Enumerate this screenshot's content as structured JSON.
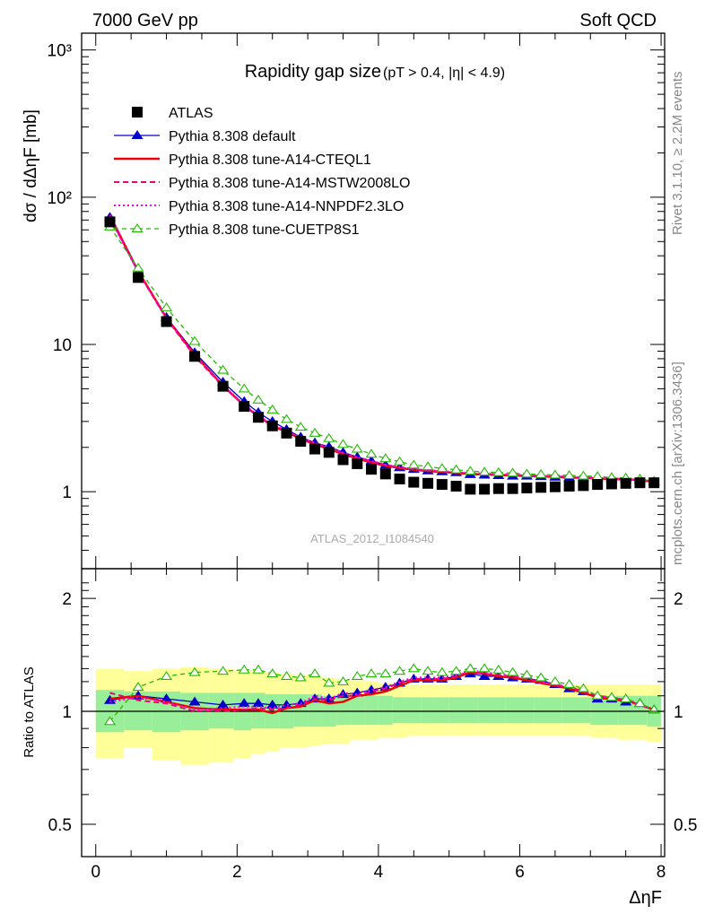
{
  "header": {
    "energy_label": "7000 GeV pp",
    "process_label": "Soft QCD",
    "side_top": "Rivet 3.1.10, ≥ 2.2M events",
    "side_bottom": "mcplots.cern.ch [arXiv:1306.3436]",
    "analysis_tag": "ATLAS_2012_I1084540"
  },
  "colors": {
    "default": "#0000cc",
    "cteql1": "#ee0000",
    "mstw": "#ee0077",
    "nnpdf": "#ff00dd",
    "cuetp": "#22bb00",
    "band_outer": "#ffff99",
    "band_inner": "#99ee99"
  },
  "chart_data": [
    {
      "type": "scatter",
      "title": "Rapidity gap size",
      "subtitle": "(pT > 0.4, |η| < 4.9)",
      "ylabel": "dσ / dΔηF [mb]",
      "xlabel": "ΔηF",
      "ylog": true,
      "ylim": [
        0.3,
        1300
      ],
      "xlim": [
        -0.2,
        8
      ],
      "y_tick_labels": [
        "1",
        "10",
        "10²",
        "10³"
      ],
      "x_tick_labels": [
        "0",
        "2",
        "4",
        "6",
        "8"
      ],
      "legend_position": "top-left",
      "x": [
        0.2,
        0.6,
        1.0,
        1.4,
        1.8,
        2.1,
        2.3,
        2.5,
        2.7,
        2.9,
        3.1,
        3.3,
        3.5,
        3.7,
        3.9,
        4.1,
        4.3,
        4.5,
        4.7,
        4.9,
        5.1,
        5.3,
        5.5,
        5.7,
        5.9,
        6.1,
        6.3,
        6.5,
        6.7,
        6.9,
        7.1,
        7.3,
        7.5,
        7.7,
        7.9
      ],
      "series": [
        {
          "name": "ATLAS",
          "key": "atlas",
          "values": [
            68,
            28.5,
            14.3,
            8.3,
            5.2,
            3.8,
            3.2,
            2.8,
            2.5,
            2.2,
            1.95,
            1.85,
            1.65,
            1.55,
            1.42,
            1.32,
            1.22,
            1.16,
            1.14,
            1.12,
            1.09,
            1.04,
            1.04,
            1.05,
            1.05,
            1.06,
            1.07,
            1.08,
            1.09,
            1.1,
            1.12,
            1.13,
            1.14,
            1.15,
            1.15
          ]
        },
        {
          "name": "Pythia 8.308 default",
          "key": "default",
          "values": [
            73,
            31,
            15.3,
            8.8,
            5.55,
            4.1,
            3.45,
            3.0,
            2.65,
            2.35,
            2.15,
            2.02,
            1.85,
            1.72,
            1.62,
            1.52,
            1.46,
            1.42,
            1.39,
            1.37,
            1.35,
            1.31,
            1.3,
            1.29,
            1.28,
            1.28,
            1.27,
            1.26,
            1.25,
            1.25,
            1.24,
            1.23,
            1.22,
            1.2,
            1.17
          ]
        },
        {
          "name": "Pythia 8.308 tune-A14-CTEQL1",
          "key": "cteql1",
          "values": [
            75,
            31.5,
            15.2,
            8.5,
            5.25,
            3.85,
            3.25,
            2.8,
            2.55,
            2.28,
            2.1,
            1.95,
            1.8,
            1.68,
            1.58,
            1.5,
            1.45,
            1.41,
            1.38,
            1.36,
            1.34,
            1.32,
            1.31,
            1.3,
            1.29,
            1.28,
            1.27,
            1.26,
            1.25,
            1.24,
            1.23,
            1.22,
            1.21,
            1.2,
            1.17
          ]
        },
        {
          "name": "Pythia 8.308 tune-A14-MSTW2008LO",
          "key": "mstw",
          "values": [
            76,
            31,
            15.0,
            8.3,
            5.2,
            3.85,
            3.25,
            2.82,
            2.55,
            2.3,
            2.12,
            1.98,
            1.82,
            1.7,
            1.6,
            1.52,
            1.46,
            1.42,
            1.39,
            1.37,
            1.35,
            1.33,
            1.32,
            1.31,
            1.3,
            1.29,
            1.28,
            1.27,
            1.26,
            1.25,
            1.24,
            1.23,
            1.22,
            1.2,
            1.17
          ]
        },
        {
          "name": "Pythia 8.308 tune-A14-NNPDF2.3LO",
          "key": "nnpdf",
          "values": [
            72,
            31,
            15.1,
            8.4,
            5.3,
            3.9,
            3.3,
            2.85,
            2.6,
            2.32,
            2.15,
            2.0,
            1.84,
            1.72,
            1.62,
            1.53,
            1.47,
            1.43,
            1.4,
            1.38,
            1.36,
            1.34,
            1.33,
            1.32,
            1.31,
            1.3,
            1.28,
            1.27,
            1.26,
            1.25,
            1.24,
            1.23,
            1.22,
            1.2,
            1.17
          ]
        },
        {
          "name": "Pythia 8.308 tune-CUETP8S1",
          "key": "cuetp",
          "values": [
            63,
            33,
            17.8,
            10.5,
            6.7,
            5.0,
            4.2,
            3.6,
            3.1,
            2.75,
            2.5,
            2.3,
            2.1,
            1.95,
            1.8,
            1.68,
            1.6,
            1.52,
            1.48,
            1.44,
            1.41,
            1.38,
            1.36,
            1.35,
            1.34,
            1.32,
            1.31,
            1.3,
            1.29,
            1.28,
            1.27,
            1.25,
            1.24,
            1.22,
            1.18
          ]
        }
      ]
    },
    {
      "type": "line",
      "ylabel": "Ratio to ATLAS",
      "ylim": [
        0.41,
        2.4
      ],
      "y_tick_labels": [
        "0.5",
        "1",
        "2"
      ],
      "x": [
        0.2,
        0.6,
        1.0,
        1.4,
        1.8,
        2.1,
        2.3,
        2.5,
        2.7,
        2.9,
        3.1,
        3.3,
        3.5,
        3.7,
        3.9,
        4.1,
        4.3,
        4.5,
        4.7,
        4.9,
        5.1,
        5.3,
        5.5,
        5.7,
        5.9,
        6.1,
        6.3,
        6.5,
        6.7,
        6.9,
        7.1,
        7.3,
        7.5,
        7.7,
        7.9
      ],
      "bands": {
        "inner_lo": [
          0.88,
          0.89,
          0.88,
          0.89,
          0.9,
          0.89,
          0.9,
          0.9,
          0.9,
          0.91,
          0.91,
          0.91,
          0.92,
          0.92,
          0.92,
          0.92,
          0.93,
          0.93,
          0.93,
          0.93,
          0.93,
          0.93,
          0.93,
          0.93,
          0.93,
          0.93,
          0.93,
          0.93,
          0.93,
          0.93,
          0.92,
          0.92,
          0.92,
          0.92,
          0.91
        ],
        "inner_hi": [
          1.14,
          1.13,
          1.13,
          1.12,
          1.12,
          1.12,
          1.12,
          1.11,
          1.11,
          1.11,
          1.11,
          1.1,
          1.1,
          1.1,
          1.1,
          1.1,
          1.09,
          1.09,
          1.09,
          1.09,
          1.09,
          1.09,
          1.09,
          1.09,
          1.09,
          1.09,
          1.09,
          1.09,
          1.09,
          1.09,
          1.09,
          1.1,
          1.1,
          1.1,
          1.1
        ],
        "outer_lo": [
          0.75,
          0.8,
          0.74,
          0.72,
          0.73,
          0.75,
          0.77,
          0.78,
          0.8,
          0.8,
          0.81,
          0.82,
          0.82,
          0.84,
          0.84,
          0.85,
          0.85,
          0.86,
          0.86,
          0.86,
          0.86,
          0.86,
          0.86,
          0.86,
          0.86,
          0.86,
          0.86,
          0.86,
          0.86,
          0.86,
          0.85,
          0.85,
          0.84,
          0.84,
          0.83
        ],
        "outer_hi": [
          1.3,
          1.28,
          1.3,
          1.31,
          1.3,
          1.29,
          1.28,
          1.27,
          1.26,
          1.25,
          1.24,
          1.23,
          1.22,
          1.21,
          1.2,
          1.19,
          1.18,
          1.18,
          1.18,
          1.18,
          1.18,
          1.18,
          1.18,
          1.18,
          1.18,
          1.18,
          1.18,
          1.18,
          1.18,
          1.18,
          1.18,
          1.18,
          1.18,
          1.18,
          1.18
        ]
      },
      "series": [
        {
          "name": "Pythia 8.308 default",
          "key": "default",
          "values": [
            1.07,
            1.1,
            1.08,
            1.06,
            1.04,
            1.05,
            1.05,
            1.04,
            1.04,
            1.05,
            1.08,
            1.08,
            1.11,
            1.12,
            1.14,
            1.16,
            1.19,
            1.22,
            1.22,
            1.22,
            1.24,
            1.26,
            1.24,
            1.24,
            1.23,
            1.22,
            1.21,
            1.18,
            1.15,
            1.13,
            1.08,
            1.08,
            1.06,
            1.05,
            1.01
          ]
        },
        {
          "name": "Pythia 8.308 tune-A14-CTEQL1",
          "key": "cteql1",
          "values": [
            1.08,
            1.1,
            1.06,
            1.02,
            1.01,
            1.01,
            1.01,
            0.99,
            1.02,
            1.03,
            1.07,
            1.05,
            1.06,
            1.1,
            1.11,
            1.13,
            1.17,
            1.21,
            1.21,
            1.21,
            1.23,
            1.27,
            1.26,
            1.24,
            1.23,
            1.21,
            1.19,
            1.17,
            1.15,
            1.12,
            1.09,
            1.08,
            1.07,
            1.04,
            1.01
          ]
        },
        {
          "name": "Pythia 8.308 tune-A14-MSTW2008LO",
          "key": "mstw",
          "values": [
            1.12,
            1.07,
            1.05,
            1.0,
            1.0,
            1.01,
            1.02,
            1.01,
            1.02,
            1.04,
            1.08,
            1.07,
            1.1,
            1.1,
            1.13,
            1.15,
            1.19,
            1.22,
            1.22,
            1.22,
            1.24,
            1.28,
            1.26,
            1.25,
            1.24,
            1.22,
            1.2,
            1.18,
            1.16,
            1.13,
            1.1,
            1.09,
            1.07,
            1.04,
            1.01
          ]
        },
        {
          "name": "Pythia 8.308 tune-A14-NNPDF2.3LO",
          "key": "nnpdf",
          "values": [
            1.06,
            1.09,
            1.06,
            1.01,
            1.02,
            1.03,
            1.03,
            1.02,
            1.04,
            1.05,
            1.1,
            1.08,
            1.12,
            1.11,
            1.14,
            1.16,
            1.2,
            1.23,
            1.23,
            1.23,
            1.25,
            1.29,
            1.27,
            1.26,
            1.25,
            1.23,
            1.2,
            1.18,
            1.16,
            1.14,
            1.1,
            1.09,
            1.07,
            1.04,
            1.01
          ]
        },
        {
          "name": "Pythia 8.308 tune-CUETP8S1",
          "key": "cuetp",
          "values": [
            0.94,
            1.16,
            1.24,
            1.27,
            1.28,
            1.29,
            1.29,
            1.26,
            1.24,
            1.23,
            1.26,
            1.19,
            1.2,
            1.24,
            1.26,
            1.26,
            1.28,
            1.3,
            1.28,
            1.27,
            1.28,
            1.3,
            1.3,
            1.29,
            1.27,
            1.25,
            1.23,
            1.2,
            1.18,
            1.15,
            1.1,
            1.09,
            1.08,
            1.05,
            1.01
          ]
        }
      ]
    }
  ]
}
